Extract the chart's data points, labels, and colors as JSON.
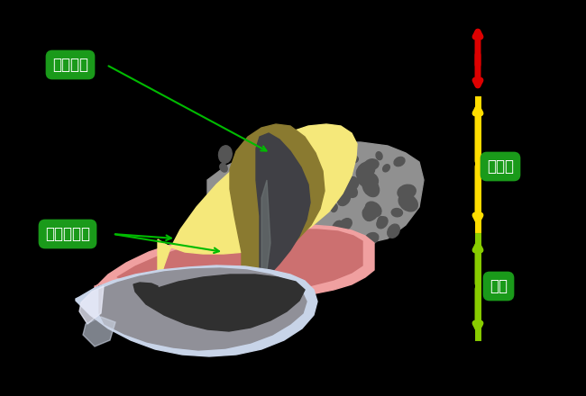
{
  "bg_color": "#000000",
  "bone_color": "#909090",
  "bone_spot_color": "#555555",
  "gum_color": "#f0a0a0",
  "gum_dark_color": "#cc7070",
  "dentin_color": "#f5e87a",
  "pdl_color": "#d4c860",
  "canal_color": "#8a7a30",
  "crown_outer_color": "#c8d4e8",
  "crown_mid_color": "#909098",
  "crown_dark_color": "#303030",
  "crown_highlight_color": "#e8eaf8",
  "post_color": "#707880",
  "label_bg": "#1a9a1a",
  "label_text": "#ffffff",
  "line_color": "#00bb00",
  "arrow_red": "#dd0000",
  "arrow_yellow": "#ffdd00",
  "arrow_green": "#88cc00",
  "labels": {
    "post_ana": "ポスト孔",
    "ferrule": "フェルール",
    "post": "ポスト",
    "core": "コア"
  }
}
